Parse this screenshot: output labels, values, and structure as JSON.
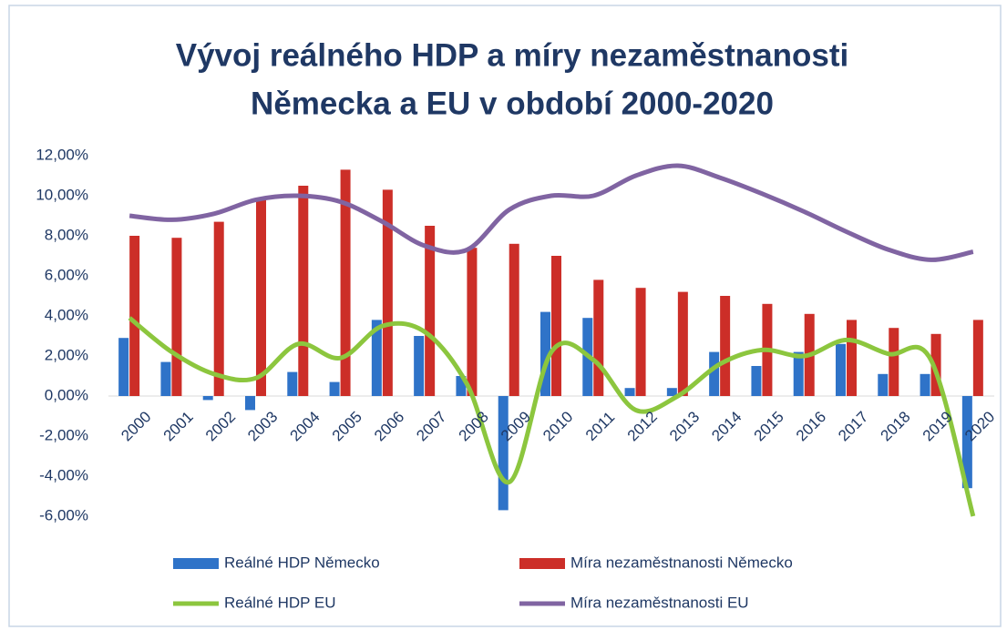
{
  "chart_data": {
    "type": "bar-line",
    "title": [
      "Vývoj reálného HDP a míry nezaměstnanosti",
      "Německa a EU v období 2000-2020"
    ],
    "categories": [
      "2000",
      "2001",
      "2002",
      "2003",
      "2004",
      "2005",
      "2006",
      "2007",
      "2008",
      "2009",
      "2010",
      "2011",
      "2012",
      "2013",
      "2014",
      "2015",
      "2016",
      "2017",
      "2018",
      "2019",
      "2020"
    ],
    "series": [
      {
        "name": "Reálné HDP Německo",
        "kind": "bar",
        "color": "#2f73c8",
        "values": [
          2.9,
          1.7,
          -0.2,
          -0.7,
          1.2,
          0.7,
          3.8,
          3.0,
          1.0,
          -5.7,
          4.2,
          3.9,
          0.4,
          0.4,
          2.2,
          1.5,
          2.2,
          2.6,
          1.1,
          1.1,
          -4.6
        ]
      },
      {
        "name": "Míra nezaměstnanosti Německo",
        "kind": "bar",
        "color": "#cc2e28",
        "values": [
          8.0,
          7.9,
          8.7,
          9.8,
          10.5,
          11.3,
          10.3,
          8.5,
          7.4,
          7.6,
          7.0,
          5.8,
          5.4,
          5.2,
          5.0,
          4.6,
          4.1,
          3.8,
          3.4,
          3.1,
          3.8
        ]
      },
      {
        "name": "Reálné HDP EU",
        "kind": "line",
        "color": "#8cc63e",
        "values": [
          3.9,
          2.2,
          1.1,
          0.9,
          2.6,
          1.9,
          3.5,
          3.2,
          0.6,
          -4.3,
          2.2,
          1.8,
          -0.7,
          0.0,
          1.6,
          2.3,
          2.0,
          2.8,
          2.1,
          1.8,
          -6.0
        ]
      },
      {
        "name": "Míra nezaměstnanosti EU",
        "kind": "line",
        "color": "#8064a2",
        "values": [
          9.0,
          8.8,
          9.1,
          9.8,
          10.0,
          9.7,
          8.7,
          7.5,
          7.3,
          9.3,
          10.0,
          10.0,
          11.0,
          11.5,
          10.9,
          10.1,
          9.2,
          8.2,
          7.3,
          6.8,
          7.2
        ]
      }
    ],
    "ylim": [
      -6,
      12
    ],
    "yticks": [
      {
        "value": -6,
        "label": "-6,00%"
      },
      {
        "value": -4,
        "label": "-4,00%"
      },
      {
        "value": -2,
        "label": "-2,00%"
      },
      {
        "value": 0,
        "label": "0,00%"
      },
      {
        "value": 2,
        "label": "2,00%"
      },
      {
        "value": 4,
        "label": "4,00%"
      },
      {
        "value": 6,
        "label": "6,00%"
      },
      {
        "value": 8,
        "label": "8,00%"
      },
      {
        "value": 10,
        "label": "10,00%"
      },
      {
        "value": 12,
        "label": "12,00%"
      }
    ],
    "grid": false,
    "legend": "bottom"
  }
}
